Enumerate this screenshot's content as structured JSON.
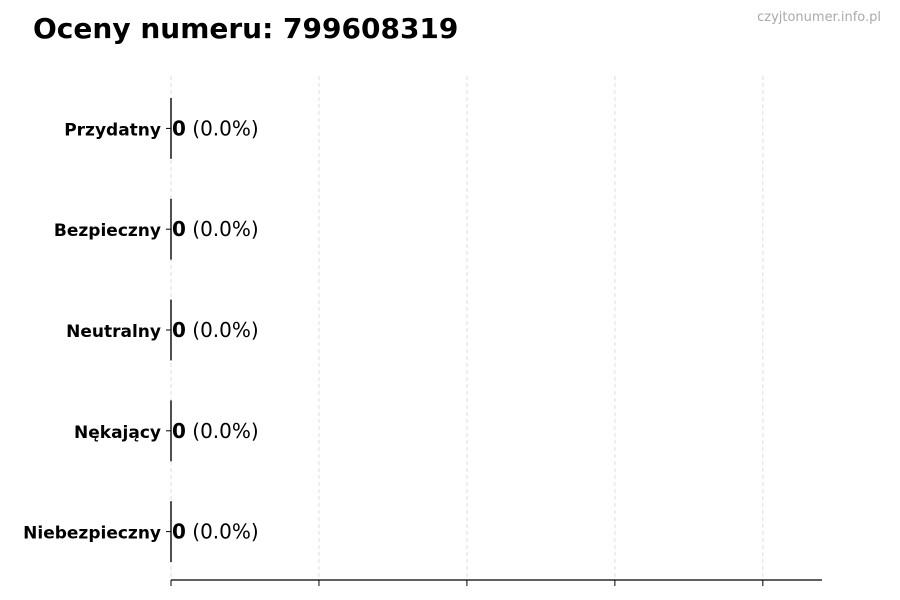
{
  "chart_data": {
    "type": "bar",
    "orientation": "horizontal",
    "title": "Oceny numeru: 799608319",
    "watermark": "czyjtonumer.info.pl",
    "categories": [
      "Przydatny",
      "Bezpieczny",
      "Neutralny",
      "Nękający",
      "Niebezpieczny"
    ],
    "values": [
      0,
      0,
      0,
      0,
      0
    ],
    "labels": [
      {
        "count": "0",
        "pct": "(0.0%)"
      },
      {
        "count": "0",
        "pct": "(0.0%)"
      },
      {
        "count": "0",
        "pct": "(0.0%)"
      },
      {
        "count": "0",
        "pct": "(0.0%)"
      },
      {
        "count": "0",
        "pct": "(0.0%)"
      }
    ],
    "xlim": [
      0,
      4.4
    ],
    "xticks": [
      0,
      1,
      2,
      3,
      4
    ],
    "xtick_labels_shown": false,
    "grid": "x dashed",
    "colors": {
      "grid": "#dddddd",
      "bar_edge": "#333333",
      "watermark": "#aaaaaa"
    }
  }
}
